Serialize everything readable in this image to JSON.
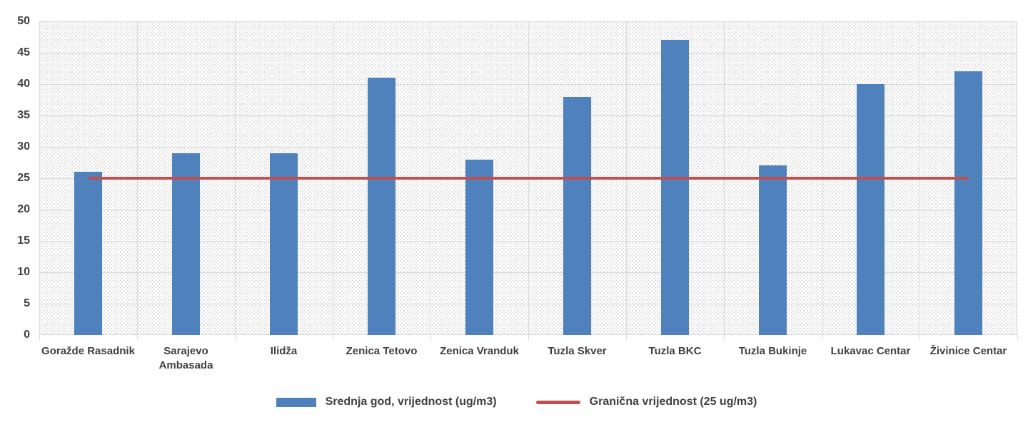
{
  "chart_data": {
    "type": "bar",
    "title": "",
    "xlabel": "",
    "ylabel": "",
    "categories": [
      "Goražde Rasadnik",
      "Sarajevo Ambasada",
      "Ilidža",
      "Zenica Tetovo",
      "Zenica Vranduk",
      "Tuzla Skver",
      "Tuzla BKC",
      "Tuzla Bukinje",
      "Lukavac Centar",
      "Živinice Centar"
    ],
    "xtick_labels": [
      "Goražde Rasadnik",
      "Sarajevo\nAmbasada",
      "Ilidža",
      "Zenica Tetovo",
      "Zenica Vranduk",
      "Tuzla Skver",
      "Tuzla BKC",
      "Tuzla Bukinje",
      "Lukavac Centar",
      "Živinice Centar"
    ],
    "series": [
      {
        "name": "Srednja god, vrijednost (ug/m3)",
        "type": "bar",
        "color": "#4F81BD",
        "values": [
          26,
          29,
          29,
          41,
          28,
          38,
          47,
          27,
          40,
          42
        ]
      },
      {
        "name": "Granična vrijednost (25 ug/m3)",
        "type": "line",
        "color": "#C0504D",
        "values": [
          25,
          25,
          25,
          25,
          25,
          25,
          25,
          25,
          25,
          25
        ]
      }
    ],
    "ylim": [
      0,
      50
    ],
    "yticks": [
      0,
      5,
      10,
      15,
      20,
      25,
      30,
      35,
      40,
      45,
      50
    ],
    "grid": {
      "horizontal": true,
      "vertical": true
    },
    "legend_position": "bottom",
    "colors": {
      "grid": "#d9d9d9",
      "text": "#404040",
      "plot_background": "dotted-diagonal-hatch"
    }
  }
}
